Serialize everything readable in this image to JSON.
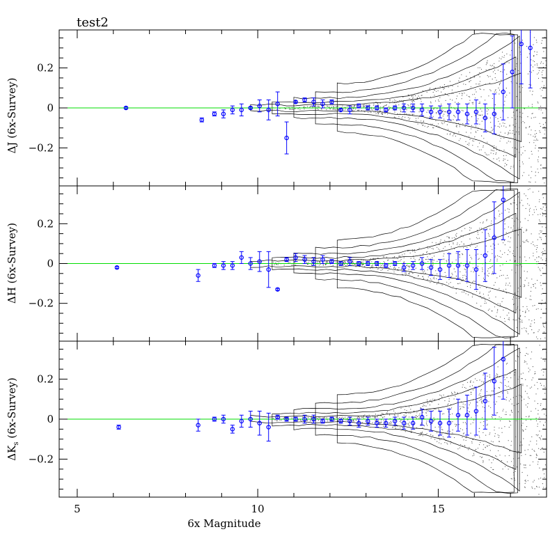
{
  "chart_data": [
    {
      "type": "scatter",
      "title": "test2",
      "ylabel": "ΔJ (6x-Survey)",
      "xlabel": "",
      "xlim": [
        4.5,
        18
      ],
      "ylim": [
        -0.39,
        0.39
      ],
      "ytick_values": [
        -0.2,
        0,
        0.2
      ],
      "ytick_labels": [
        "−0.2",
        "0",
        "0.2"
      ],
      "zero_line_color": "#00dd00",
      "point_color": "#0000ff",
      "series": [
        {
          "x": [
            6.35,
            8.45,
            8.8,
            9.05,
            9.3,
            9.55,
            9.8,
            10.05,
            10.3,
            10.55,
            10.8,
            11.05,
            11.3,
            11.55,
            11.8,
            12.05,
            12.3,
            12.55,
            12.8,
            13.05,
            13.3,
            13.55,
            13.8,
            14.05,
            14.3,
            14.55,
            14.8,
            15.05,
            15.3,
            15.55,
            15.8,
            16.05,
            16.3,
            16.55,
            16.8,
            17.05,
            17.3,
            17.55
          ],
          "y": [
            0.0,
            -0.06,
            -0.03,
            -0.03,
            -0.01,
            -0.01,
            0.0,
            0.01,
            -0.01,
            0.02,
            -0.15,
            0.03,
            0.04,
            0.03,
            0.02,
            0.03,
            -0.01,
            -0.01,
            0.01,
            0.0,
            0.0,
            -0.01,
            0.0,
            0.0,
            0.0,
            -0.01,
            -0.02,
            -0.02,
            -0.02,
            -0.02,
            -0.03,
            -0.02,
            -0.05,
            -0.03,
            0.08,
            0.18,
            0.32,
            0.3
          ],
          "err": [
            0.005,
            0.01,
            0.01,
            0.02,
            0.02,
            0.03,
            0.005,
            0.03,
            0.05,
            0.06,
            0.08,
            0.005,
            0.01,
            0.02,
            0.02,
            0.01,
            0.005,
            0.02,
            0.01,
            0.01,
            0.01,
            0.01,
            0.01,
            0.02,
            0.02,
            0.03,
            0.03,
            0.03,
            0.04,
            0.04,
            0.05,
            0.06,
            0.07,
            0.1,
            0.14,
            0.18,
            0.2,
            0.2
          ]
        }
      ]
    },
    {
      "type": "scatter",
      "title": "",
      "ylabel": "ΔH (6x-Survey)",
      "xlabel": "",
      "xlim": [
        4.5,
        18
      ],
      "ylim": [
        -0.39,
        0.39
      ],
      "ytick_values": [
        -0.2,
        0,
        0.2
      ],
      "ytick_labels": [
        "−0.2",
        "0",
        "0.2"
      ],
      "zero_line_color": "#00dd00",
      "point_color": "#0000ff",
      "series": [
        {
          "x": [
            6.1,
            8.35,
            8.8,
            9.05,
            9.3,
            9.55,
            9.8,
            10.05,
            10.3,
            10.55,
            10.8,
            11.05,
            11.3,
            11.55,
            11.8,
            12.05,
            12.3,
            12.55,
            12.8,
            13.05,
            13.3,
            13.55,
            13.8,
            14.05,
            14.3,
            14.55,
            14.8,
            15.05,
            15.3,
            15.55,
            15.8,
            16.05,
            16.3,
            16.55,
            16.8
          ],
          "y": [
            -0.02,
            -0.06,
            -0.01,
            -0.01,
            -0.01,
            0.03,
            0.0,
            0.01,
            -0.03,
            -0.13,
            0.02,
            0.03,
            0.02,
            0.01,
            0.02,
            0.01,
            0.0,
            0.01,
            0.0,
            0.0,
            0.0,
            -0.01,
            0.0,
            -0.02,
            -0.01,
            0.0,
            -0.02,
            -0.03,
            -0.01,
            -0.01,
            -0.01,
            -0.03,
            0.04,
            0.13,
            0.32
          ],
          "err": [
            0.005,
            0.03,
            0.01,
            0.02,
            0.02,
            0.03,
            0.03,
            0.05,
            0.09,
            0.005,
            0.01,
            0.02,
            0.02,
            0.02,
            0.02,
            0.01,
            0.01,
            0.02,
            0.01,
            0.01,
            0.01,
            0.01,
            0.01,
            0.02,
            0.02,
            0.03,
            0.04,
            0.05,
            0.06,
            0.07,
            0.08,
            0.1,
            0.13,
            0.18,
            0.2
          ]
        }
      ]
    },
    {
      "type": "scatter",
      "title": "",
      "ylabel": "ΔKs (6x-Survey)",
      "ylabel_main": "ΔK",
      "ylabel_sub": "s",
      "ylabel_rest": " (6x-Survey)",
      "xlabel": "6x Magnitude",
      "xlim": [
        4.5,
        18
      ],
      "ylim": [
        -0.39,
        0.39
      ],
      "xtick_values": [
        5,
        10,
        15
      ],
      "xtick_labels": [
        "5",
        "10",
        "15"
      ],
      "ytick_values": [
        -0.2,
        0,
        0.2
      ],
      "ytick_labels": [
        "−0.2",
        "0",
        "0.2"
      ],
      "zero_line_color": "#00dd00",
      "point_color": "#0000ff",
      "series": [
        {
          "x": [
            6.15,
            8.35,
            8.8,
            9.05,
            9.3,
            9.55,
            9.8,
            10.05,
            10.3,
            10.55,
            10.8,
            11.05,
            11.3,
            11.55,
            11.8,
            12.05,
            12.3,
            12.55,
            12.8,
            13.05,
            13.3,
            13.55,
            13.8,
            14.05,
            14.3,
            14.55,
            14.8,
            15.05,
            15.3,
            15.55,
            15.8,
            16.05,
            16.3,
            16.55,
            16.8
          ],
          "y": [
            -0.04,
            -0.03,
            0.0,
            0.0,
            -0.05,
            -0.01,
            0.0,
            -0.02,
            -0.04,
            0.01,
            0.0,
            0.0,
            0.0,
            0.0,
            -0.01,
            0.0,
            -0.01,
            -0.01,
            -0.02,
            -0.01,
            -0.02,
            -0.02,
            -0.01,
            -0.02,
            -0.02,
            0.01,
            -0.01,
            -0.02,
            -0.02,
            0.02,
            0.02,
            0.04,
            0.09,
            0.19,
            0.3
          ],
          "err": [
            0.01,
            0.03,
            0.01,
            0.02,
            0.02,
            0.03,
            0.04,
            0.06,
            0.07,
            0.01,
            0.01,
            0.01,
            0.02,
            0.02,
            0.01,
            0.01,
            0.01,
            0.02,
            0.02,
            0.02,
            0.02,
            0.02,
            0.02,
            0.03,
            0.03,
            0.04,
            0.05,
            0.06,
            0.07,
            0.08,
            0.1,
            0.12,
            0.14,
            0.17,
            0.2
          ]
        }
      ]
    }
  ]
}
